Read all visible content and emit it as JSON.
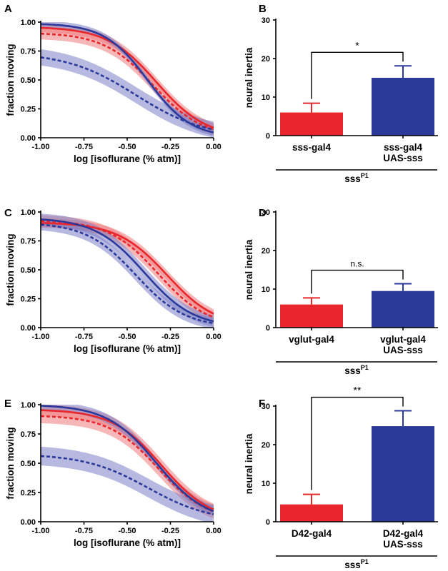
{
  "colors": {
    "red": "#e8262b",
    "blue": "#2b3a9a",
    "red_band": "#ef7c7e",
    "blue_band": "#7b7fc6"
  },
  "chart_data": [
    {
      "panel": "A",
      "type": "line",
      "xlabel": "log [isoflurane (% atm)]",
      "ylabel": "fraction moving",
      "xlim": [
        -1.0,
        0.0
      ],
      "ylim": [
        0.0,
        1.0
      ],
      "xticks": [
        "-1.00",
        "-0.75",
        "-0.50",
        "-0.25",
        "0.00"
      ],
      "yticks": [
        "0.00",
        "0.25",
        "0.50",
        "0.75",
        "1.00"
      ],
      "series": [
        {
          "color": "red",
          "style": "solid",
          "top": 0.96,
          "ec50": -0.33,
          "slope": 7.0,
          "band": 0.04
        },
        {
          "color": "red",
          "style": "dashed",
          "top": 0.91,
          "ec50": -0.35,
          "slope": 7.0,
          "band": 0.05
        },
        {
          "color": "blue",
          "style": "solid",
          "top": 0.99,
          "ec50": -0.38,
          "slope": 8.0,
          "band": 0.03
        },
        {
          "color": "blue",
          "style": "dashed",
          "top": 0.74,
          "ec50": -0.45,
          "slope": 5.0,
          "band": 0.07
        }
      ]
    },
    {
      "panel": "B",
      "type": "bar",
      "ylabel": "neural inertia",
      "ylim": [
        0,
        30
      ],
      "yticks": [
        "0",
        "10",
        "20",
        "30"
      ],
      "categories": [
        [
          "sss-gal4"
        ],
        [
          "sss-gal4",
          "UAS-sss"
        ]
      ],
      "values": [
        6.0,
        15.0
      ],
      "errors": [
        2.4,
        3.1
      ],
      "bar_colors": [
        "red",
        "blue"
      ],
      "significance": "*",
      "group_label": "sss",
      "group_sup": "P1"
    },
    {
      "panel": "C",
      "type": "line",
      "xlabel": "log [isoflurane (% atm)]",
      "ylabel": "fraction moving",
      "xlim": [
        -1.0,
        0.0
      ],
      "ylim": [
        0.0,
        1.0
      ],
      "xticks": [
        "-1.00",
        "-0.75",
        "-0.50",
        "-0.25",
        "0.00"
      ],
      "yticks": [
        "0.00",
        "0.25",
        "0.50",
        "0.75",
        "1.00"
      ],
      "series": [
        {
          "color": "red",
          "style": "solid",
          "top": 0.91,
          "ec50": -0.27,
          "slope": 7.0,
          "band": 0.04
        },
        {
          "color": "red",
          "style": "dashed",
          "top": 0.93,
          "ec50": -0.32,
          "slope": 7.0,
          "band": 0.05
        },
        {
          "color": "blue",
          "style": "solid",
          "top": 0.95,
          "ec50": -0.4,
          "slope": 7.0,
          "band": 0.05
        },
        {
          "color": "blue",
          "style": "dashed",
          "top": 0.91,
          "ec50": -0.45,
          "slope": 7.0,
          "band": 0.05
        }
      ]
    },
    {
      "panel": "D",
      "type": "bar",
      "ylabel": "neural inertia",
      "ylim": [
        0,
        30
      ],
      "yticks": [
        "0",
        "10",
        "20",
        "30"
      ],
      "categories": [
        [
          "vglut-gal4"
        ],
        [
          "vglut-gal4",
          "UAS-sss"
        ]
      ],
      "values": [
        6.0,
        9.5
      ],
      "errors": [
        1.7,
        1.9
      ],
      "bar_colors": [
        "red",
        "blue"
      ],
      "significance": "n.s.",
      "group_label": "sss",
      "group_sup": "P1"
    },
    {
      "panel": "E",
      "type": "line",
      "xlabel": "log [isoflurane (% atm)]",
      "ylabel": "fraction moving",
      "xlim": [
        -1.0,
        0.0
      ],
      "ylim": [
        0.0,
        1.0
      ],
      "xticks": [
        "-1.00",
        "-0.75",
        "-0.50",
        "-0.25",
        "0.00"
      ],
      "yticks": [
        "0.00",
        "0.25",
        "0.50",
        "0.75",
        "1.00"
      ],
      "series": [
        {
          "color": "red",
          "style": "solid",
          "top": 0.96,
          "ec50": -0.3,
          "slope": 7.0,
          "band": 0.05
        },
        {
          "color": "red",
          "style": "dashed",
          "top": 0.91,
          "ec50": -0.32,
          "slope": 7.0,
          "band": 0.06
        },
        {
          "color": "blue",
          "style": "solid",
          "top": 1.0,
          "ec50": -0.33,
          "slope": 7.0,
          "band": 0.04
        },
        {
          "color": "blue",
          "style": "dashed",
          "top": 0.58,
          "ec50": -0.38,
          "slope": 5.5,
          "band": 0.08
        }
      ]
    },
    {
      "panel": "F",
      "type": "bar",
      "ylabel": "neural inertia",
      "ylim": [
        0,
        30
      ],
      "yticks": [
        "0",
        "10",
        "20",
        "30"
      ],
      "categories": [
        [
          "D42-gal4"
        ],
        [
          "D42-gal4",
          "UAS-sss"
        ]
      ],
      "values": [
        4.5,
        24.8
      ],
      "errors": [
        2.6,
        4.0
      ],
      "bar_colors": [
        "red",
        "blue"
      ],
      "significance": "**",
      "group_label": "sss",
      "group_sup": "P1"
    }
  ]
}
